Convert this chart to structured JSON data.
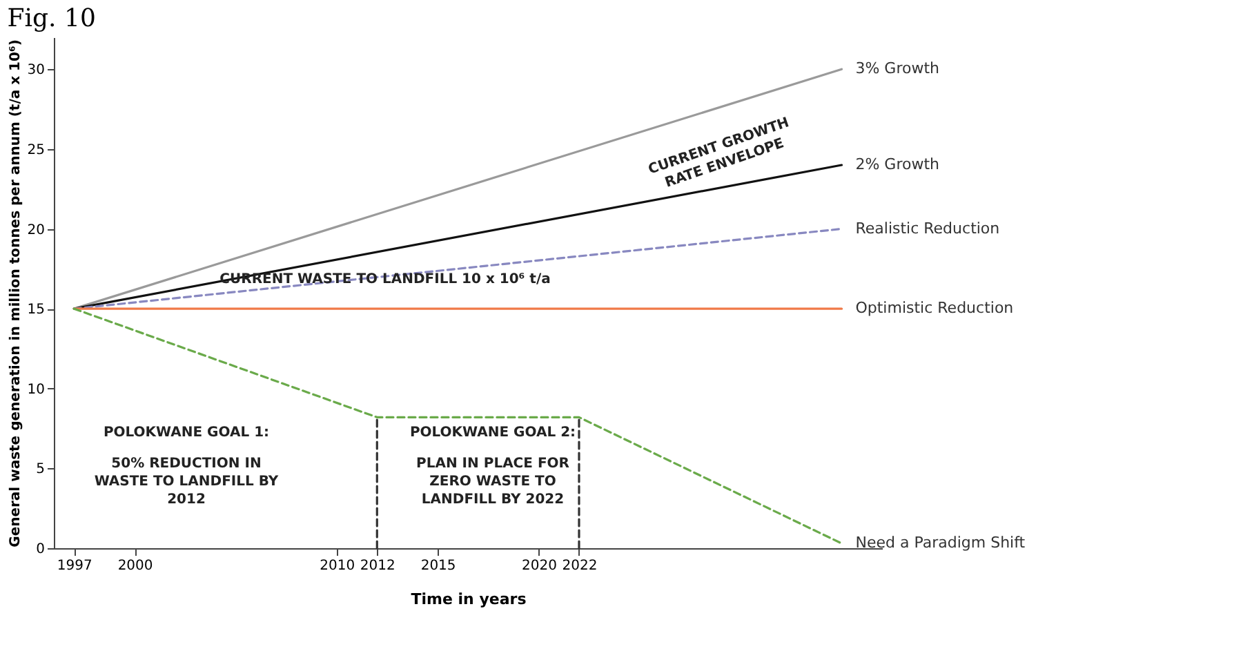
{
  "chart_data": {
    "type": "line",
    "title": "Fig. 10",
    "xlabel": "Time in years",
    "ylabel": "General waste generation in million tonnes per annum (t/a x 10⁶)",
    "xlim": [
      1996,
      2037
    ],
    "xticks": [
      1997,
      2000,
      2010,
      2012,
      2015,
      2020,
      2022
    ],
    "ylim": [
      0,
      32
    ],
    "yticks": [
      0,
      5,
      10,
      15,
      20,
      25,
      30
    ],
    "grid": false,
    "series": [
      {
        "name": "3% Growth",
        "color": "#9a9a9a",
        "x": [
          1997,
          2035
        ],
        "values": [
          15,
          30
        ],
        "line_style": "solid"
      },
      {
        "name": "2% Growth",
        "color": "#111111",
        "x": [
          1997,
          2035
        ],
        "values": [
          15,
          24
        ],
        "line_style": "solid"
      },
      {
        "name": "Realistic Reduction",
        "color": "#8888c0",
        "x": [
          1997,
          2035
        ],
        "values": [
          15,
          20
        ],
        "line_style": "dashed"
      },
      {
        "name": "Optimistic Reduction",
        "color": "#f07a48",
        "x": [
          1997,
          2035
        ],
        "values": [
          15,
          15
        ],
        "line_style": "solid"
      },
      {
        "name": "Need a Paradigm Shift",
        "color": "#6aaa4a",
        "x": [
          1997,
          2012,
          2022,
          2035
        ],
        "values": [
          15,
          8.2,
          8.2,
          0.3
        ],
        "line_style": "dashed"
      },
      {
        "color": "#333333",
        "x": [
          2012,
          2012
        ],
        "values": [
          0,
          8.2
        ],
        "line_style": "dashed"
      },
      {
        "color": "#333333",
        "x": [
          2022,
          2022
        ],
        "values": [
          0,
          8.2
        ],
        "line_style": "dashed"
      }
    ],
    "annotations": [
      "CURRENT GROWTH RATE ENVELOPE",
      "CURRENT WASTE TO LANDFILL 10 x 10⁶ t/a",
      "POLOKWANE GOAL 1:",
      "50% REDUCTION IN WASTE TO LANDFILL BY 2012",
      "POLOKWANE GOAL 2:",
      "PLAN IN PLACE FOR ZERO WASTE TO LANDFILL BY 2022"
    ]
  }
}
